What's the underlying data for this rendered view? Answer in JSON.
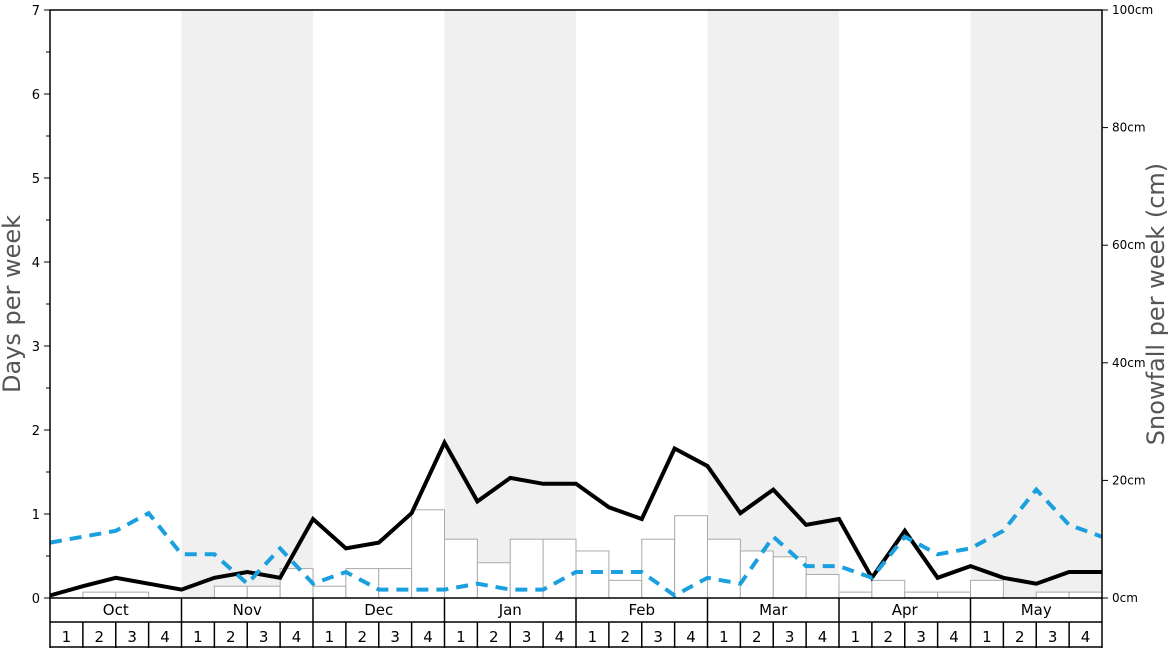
{
  "chart_data": {
    "type": "bar+line",
    "title": "",
    "ylabel_left": "Days per week",
    "ylabel_right": "Snowfall per week (cm)",
    "ylim_left": [
      0,
      7
    ],
    "ylim_right": [
      0,
      100
    ],
    "left_ticks": [
      "0",
      "1",
      "2",
      "3",
      "4",
      "5",
      "6",
      "7"
    ],
    "right_ticks": [
      "0cm",
      "20cm",
      "40cm",
      "60cm",
      "80cm",
      "100cm"
    ],
    "months": [
      "Oct",
      "Nov",
      "Dec",
      "Jan",
      "Feb",
      "Mar",
      "Apr",
      "May"
    ],
    "week_labels": [
      "1",
      "2",
      "3",
      "4"
    ],
    "month_shading": "alternating",
    "colors": {
      "solid_line": "#000000",
      "dashed_line": "#1a9fdf",
      "bar_fill": "#ffffff",
      "bar_stroke": "#aaaaaa",
      "shade": "#f0f0f0"
    },
    "series": [
      {
        "type": "bar",
        "axis": "right",
        "values": [
          0,
          1,
          1,
          0,
          0,
          2,
          2,
          5,
          2,
          5,
          5,
          15,
          10,
          6,
          10,
          10,
          8,
          3,
          10,
          14,
          10,
          8,
          7,
          4,
          1,
          3,
          1,
          1,
          3,
          0,
          1,
          1
        ]
      },
      {
        "type": "line",
        "style": "solid",
        "axis": "left",
        "values": [
          0.03,
          0.14,
          0.24,
          0.17,
          0.1,
          0.24,
          0.31,
          0.24,
          0.94,
          0.59,
          0.66,
          1.01,
          1.85,
          1.15,
          1.43,
          1.36,
          1.36,
          1.08,
          0.94,
          1.78,
          1.57,
          1.01,
          1.29,
          0.87,
          0.94,
          0.24,
          0.8,
          0.24,
          0.38,
          0.24,
          0.17,
          0.31,
          0.31
        ]
      },
      {
        "type": "line",
        "style": "dashed",
        "axis": "left",
        "values": [
          0.66,
          0.73,
          0.8,
          1.01,
          0.52,
          0.52,
          0.17,
          0.59,
          0.17,
          0.31,
          0.1,
          0.1,
          0.1,
          0.17,
          0.1,
          0.1,
          0.31,
          0.31,
          0.31,
          0.03,
          0.24,
          0.17,
          0.73,
          0.38,
          0.38,
          0.24,
          0.73,
          0.52,
          0.59,
          0.8,
          1.29,
          0.87,
          0.73
        ]
      }
    ]
  }
}
